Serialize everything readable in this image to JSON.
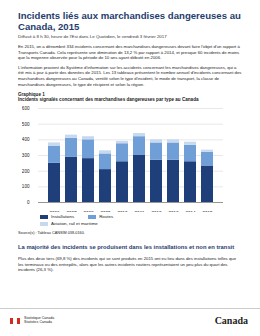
{
  "header": {
    "title": "Incidents liés aux marchandises dangereuses au Canada, 2015",
    "subtitle": "Diffusé à 8 h 30, heure de l'Est dans Le Quotidien, le vendredi 3 février 2017"
  },
  "paragraphs": [
    "En 2015, on a dénombré 334 incidents concernant des marchandises dangereuses devant faire l'objet d'un rapport à Transports Canada. Cela représente une diminution de 13,2 % par rapport à 2014, et presque 60 incidents de moins que la moyenne observée pour la période de 10 ans ayant débuté en 2006.",
    "L'information provient du Système d'information sur les accidents concernant les marchandises dangereuses, qui a été mis à jour à partir des données de 2015. Les 13 tableaux présentent le nombre annuel d'incidents concernant des marchandises dangereuses au Canada, ventilé selon le type d'incident, le mode de transport, la classe de marchandises dangereuses, le type de récipient et selon la région."
  ],
  "chart_label": "Graphique 1",
  "chart_data": {
    "type": "bar",
    "stacked": true,
    "grid": true,
    "title": "Incidents signalés concernant des marchandises dangereuses par type au Canada",
    "categories": [
      "2006",
      "2007",
      "2008",
      "2009",
      "2010",
      "2011",
      "2012",
      "2013",
      "2014",
      "2015"
    ],
    "series": [
      {
        "name": "Installations",
        "color": "#1f3f7a",
        "values": [
          250,
          290,
          280,
          210,
          260,
          300,
          270,
          270,
          260,
          233
        ]
      },
      {
        "name": "Routes",
        "color": "#6f9fd6",
        "values": [
          110,
          120,
          120,
          100,
          115,
          120,
          110,
          110,
          105,
          88
        ]
      },
      {
        "name": "Aviation, rail et maritime",
        "color": "#c6d9ef",
        "values": [
          20,
          20,
          20,
          20,
          15,
          20,
          20,
          20,
          20,
          13
        ]
      }
    ],
    "ylim": [
      0,
      600
    ],
    "yticks": [
      0,
      100,
      200,
      300,
      400,
      500,
      600
    ]
  },
  "source": "Source(s) : Tableau CANSIM 038-0160.",
  "section": {
    "heading": "La majorité des incidents se produisent dans les installations et non en transit",
    "text": "Plus des deux tiers (69,8 %) des incidents qui se sont produits en 2015 ont eu lieu dans des installations telles que les terminaux ou des entrepôts, alors que les autres incidents routiers représentaient un peu plus du quart des incidents (26,3 %)."
  },
  "footer": {
    "agency": [
      "Statistique Canada",
      "Statistics Canada"
    ],
    "wordmark": "Canada"
  }
}
